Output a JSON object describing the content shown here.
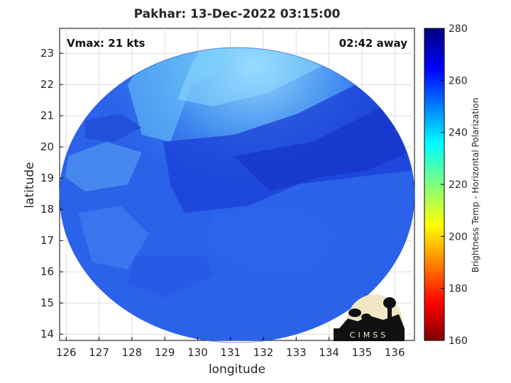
{
  "title": "Pakhar: 13-Dec-2022 03:15:00",
  "vmax_text": "Vmax: 21 kts",
  "away_text": "02:42 away",
  "xlabel": "longitude",
  "ylabel": "latitude",
  "colorbar_label": "Brightness Temp - Horizontal Polarization",
  "logo_text": "CIMSS",
  "chart_data": {
    "type": "heatmap",
    "x_ticks": [
      "126",
      "127",
      "128",
      "129",
      "130",
      "131",
      "132",
      "133",
      "134",
      "135",
      "136"
    ],
    "y_ticks": [
      "14",
      "15",
      "16",
      "17",
      "18",
      "19",
      "20",
      "21",
      "22",
      "23"
    ],
    "xlim": [
      125.8,
      136.6
    ],
    "ylim": [
      13.8,
      23.8
    ],
    "grid": true,
    "colorbar": {
      "ticks": [
        "160",
        "180",
        "200",
        "220",
        "240",
        "260",
        "280"
      ],
      "range": [
        160,
        280
      ],
      "colormap": "jet"
    }
  }
}
